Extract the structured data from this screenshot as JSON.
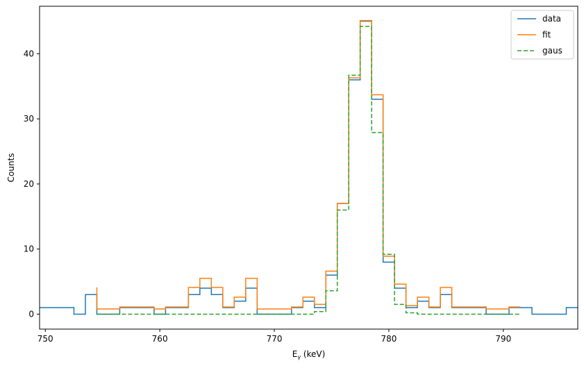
{
  "chart_data": {
    "type": "line",
    "title": "",
    "xlabel_main": "E",
    "xlabel_sub": "γ",
    "xlabel_unit": " (keV)",
    "ylabel": "Counts",
    "xlim": [
      749.5,
      796.5
    ],
    "ylim": [
      -2.3,
      47.3
    ],
    "xticks": [
      750,
      760,
      770,
      780,
      790
    ],
    "yticks": [
      0,
      10,
      20,
      30,
      40
    ],
    "grid": false,
    "legend_position": "top-right",
    "series": [
      {
        "name": "data",
        "color": "#1f77b4",
        "dash": "",
        "edges": [
          749.5,
          750.5,
          751.5,
          752.5,
          753.5,
          754.5,
          755.5,
          756.5,
          757.5,
          758.5,
          759.5,
          760.5,
          761.5,
          762.5,
          763.5,
          764.5,
          765.5,
          766.5,
          767.5,
          768.5,
          769.5,
          770.5,
          771.5,
          772.5,
          773.5,
          774.5,
          775.5,
          776.5,
          777.5,
          778.5,
          779.5,
          780.5,
          781.5,
          782.5,
          783.5,
          784.5,
          785.5,
          786.5,
          787.5,
          788.5,
          789.5,
          790.5,
          791.5,
          792.5,
          793.5,
          794.5,
          795.5,
          796.5
        ],
        "values": [
          1,
          1,
          1,
          0,
          3,
          0,
          0,
          1,
          1,
          1,
          0,
          1,
          1,
          3,
          4,
          3,
          1,
          2,
          4,
          0,
          0,
          0,
          1,
          2,
          1,
          6,
          17,
          36,
          45,
          33,
          8,
          4,
          1,
          2,
          1,
          3,
          1,
          1,
          1,
          0,
          0,
          1,
          1,
          0,
          0,
          0,
          1
        ]
      },
      {
        "name": "fit",
        "color": "#ff7f0e",
        "dash": "",
        "edges": [
          754.5,
          755.5,
          756.5,
          757.5,
          758.5,
          759.5,
          760.5,
          761.5,
          762.5,
          763.5,
          764.5,
          765.5,
          766.5,
          767.5,
          768.5,
          769.5,
          770.5,
          771.5,
          772.5,
          773.5,
          774.5,
          775.5,
          776.5,
          777.5,
          778.5,
          779.5,
          780.5,
          781.5,
          782.5,
          783.5,
          784.5,
          785.5,
          786.5,
          787.5,
          788.5,
          789.5,
          790.5,
          791.5
        ],
        "values": [
          0.8,
          0.8,
          1.1,
          1.1,
          1.1,
          0.8,
          1.1,
          1.1,
          4.1,
          5.5,
          4.1,
          1.1,
          2.6,
          5.5,
          0.8,
          0.8,
          0.8,
          1.1,
          2.6,
          1.5,
          6.6,
          17,
          36.3,
          45.1,
          33.7,
          8.9,
          4.6,
          1.3,
          2.6,
          1.1,
          4.1,
          1.1,
          1.1,
          1.1,
          0.8,
          0.8,
          1.1
        ],
        "start_from_value": 4.1
      },
      {
        "name": "gaus",
        "color": "#2ca02c",
        "dash": "6,3",
        "edges": [
          754.5,
          755.5,
          756.5,
          757.5,
          758.5,
          759.5,
          760.5,
          761.5,
          762.5,
          763.5,
          764.5,
          765.5,
          766.5,
          767.5,
          768.5,
          769.5,
          770.5,
          771.5,
          772.5,
          773.5,
          774.5,
          775.5,
          776.5,
          777.5,
          778.5,
          779.5,
          780.5,
          781.5,
          782.5,
          783.5,
          784.5,
          785.5,
          786.5,
          787.5,
          788.5,
          789.5,
          790.5,
          791.5
        ],
        "values": [
          0,
          0,
          0,
          0,
          0,
          0,
          0,
          0,
          0,
          0,
          0,
          0,
          0,
          0,
          0,
          0,
          0,
          0,
          0,
          0.4,
          3.6,
          16,
          36.7,
          44.2,
          27.9,
          9.2,
          1.5,
          0.2,
          0,
          0,
          0,
          0,
          0,
          0,
          0,
          0,
          0
        ]
      }
    ]
  }
}
